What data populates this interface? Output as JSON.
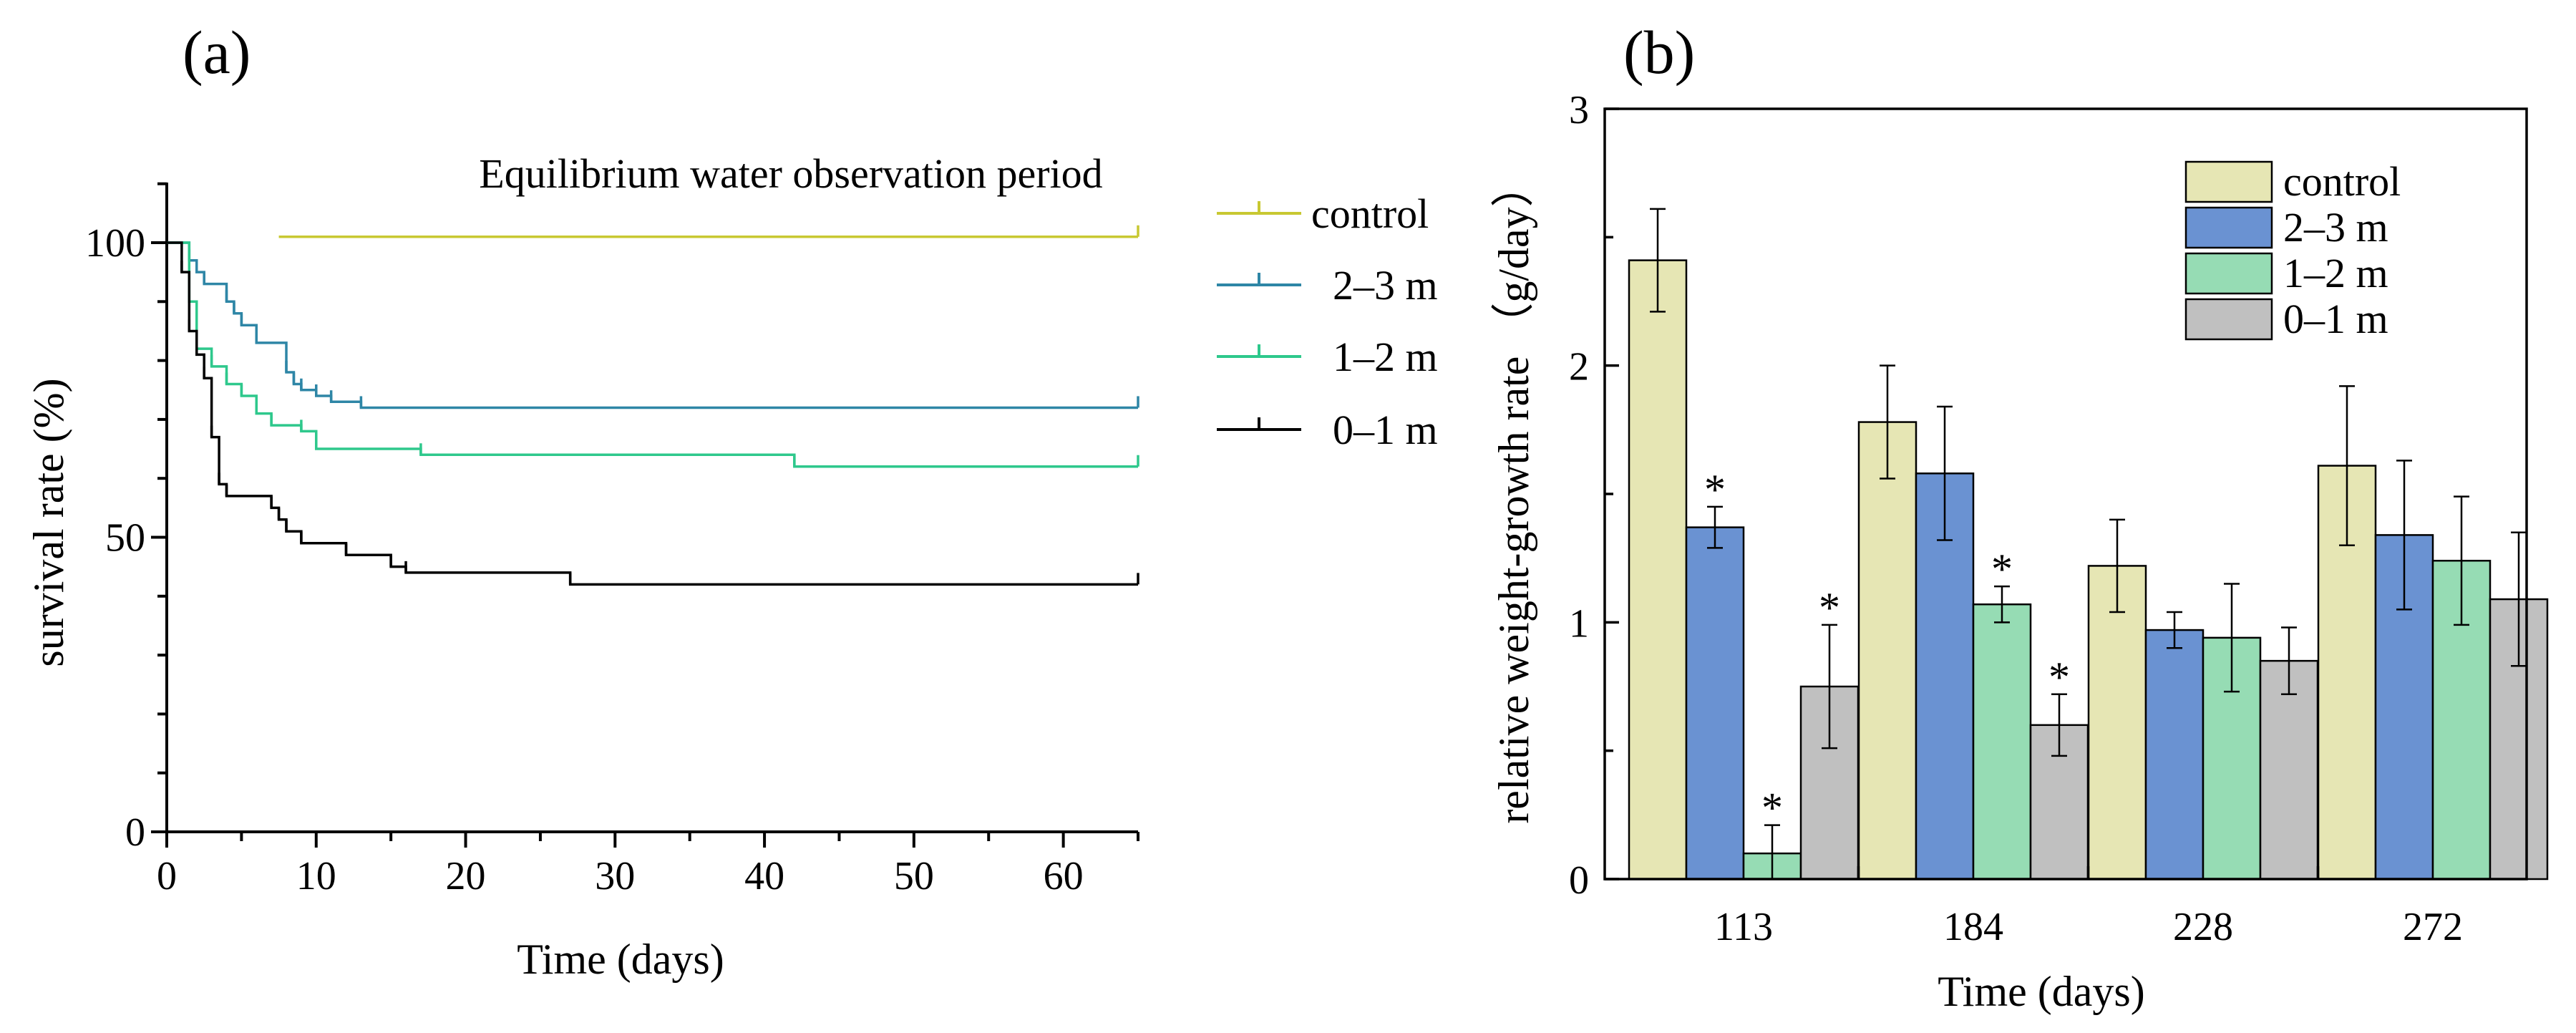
{
  "chart_data": [
    {
      "panel": "(a)",
      "type": "line",
      "step": true,
      "title": "",
      "annotation": "Equilibrium water observation period",
      "xlabel": "Time (days)",
      "ylabel": "survival rate (%)",
      "xlim": [
        0,
        65
      ],
      "ylim": [
        0,
        110
      ],
      "xticks": [
        0,
        10,
        20,
        30,
        40,
        50,
        60
      ],
      "yticks": [
        0,
        50,
        100
      ],
      "legend_position": "right-outside",
      "series": [
        {
          "name": "control",
          "color": "#c8c832",
          "x": [
            7.5,
            65
          ],
          "y": [
            101,
            101
          ]
        },
        {
          "name": "2–3 m",
          "color": "#2e86a6",
          "x": [
            0,
            1.5,
            2,
            2.5,
            3,
            4,
            4.5,
            5,
            6,
            8,
            8.5,
            9,
            10,
            11,
            13,
            65
          ],
          "y": [
            100,
            97,
            95,
            93,
            93,
            90,
            88,
            86,
            83,
            78,
            76,
            75,
            74,
            73,
            72,
            72
          ]
        },
        {
          "name": "1–2 m",
          "color": "#2ec88c",
          "x": [
            0,
            1.5,
            2,
            3,
            4,
            5,
            6,
            7,
            9,
            10,
            17,
            42,
            65
          ],
          "y": [
            100,
            90,
            82,
            79,
            76,
            74,
            71,
            69,
            68,
            65,
            64,
            62,
            62
          ]
        },
        {
          "name": "0–1 m",
          "color": "#000000",
          "x": [
            0,
            1,
            1.5,
            2,
            2.5,
            3,
            3.5,
            4,
            7,
            7.5,
            8,
            9,
            12,
            15,
            16,
            27,
            65
          ],
          "y": [
            100,
            95,
            85,
            81,
            77,
            67,
            59,
            57,
            55,
            53,
            51,
            49,
            47,
            45,
            44,
            42,
            42
          ]
        }
      ]
    },
    {
      "panel": "(b)",
      "type": "bar",
      "title": "",
      "xlabel": "Time (days)",
      "ylabel": "relative weight-growth rate （g/day）",
      "ylim": [
        0,
        3
      ],
      "yticks": [
        0,
        1,
        2,
        3
      ],
      "categories": [
        "113",
        "184",
        "228",
        "272"
      ],
      "legend_position": "top-right",
      "significance_marker": "*",
      "series": [
        {
          "name": "control",
          "color": "#e6e6b4",
          "values": [
            2.41,
            1.78,
            1.22,
            1.61
          ],
          "errors": [
            0.2,
            0.22,
            0.18,
            0.31
          ],
          "significant": [
            false,
            false,
            false,
            false
          ]
        },
        {
          "name": "2–3 m",
          "color": "#6a92d2",
          "values": [
            1.37,
            1.58,
            0.97,
            1.34
          ],
          "errors": [
            0.08,
            0.26,
            0.07,
            0.29
          ],
          "significant": [
            true,
            false,
            false,
            false
          ]
        },
        {
          "name": "1–2 m",
          "color": "#96dcb4",
          "values": [
            0.1,
            1.07,
            0.94,
            1.24
          ],
          "errors": [
            0.11,
            0.07,
            0.21,
            0.25
          ],
          "significant": [
            true,
            true,
            false,
            false
          ]
        },
        {
          "name": "0–1 m",
          "color": "#c0c0c0",
          "values": [
            0.75,
            0.6,
            0.85,
            1.09
          ],
          "errors": [
            0.24,
            0.12,
            0.13,
            0.26
          ],
          "significant": [
            true,
            true,
            false,
            false
          ]
        }
      ]
    }
  ]
}
